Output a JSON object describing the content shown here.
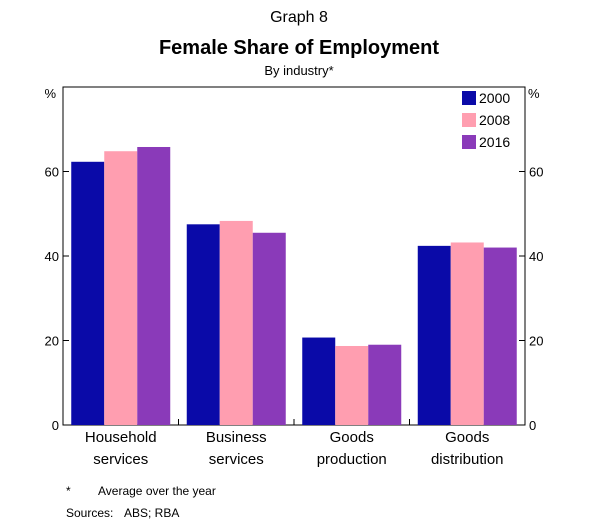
{
  "graph_label": "Graph 8",
  "chart_data": {
    "type": "bar",
    "title": "Female Share of Employment",
    "subtitle": "By industry*",
    "ylabel_left": "%",
    "ylabel_right": "%",
    "ylim": [
      0,
      80
    ],
    "yticks": [
      0,
      20,
      40,
      60
    ],
    "categories": [
      [
        "Household",
        "services"
      ],
      [
        "Business",
        "services"
      ],
      [
        "Goods",
        "production"
      ],
      [
        "Goods",
        "distribution"
      ]
    ],
    "series": [
      {
        "name": "2000",
        "color": "#0a0aa8",
        "values": [
          62.3,
          47.5,
          20.7,
          42.4
        ]
      },
      {
        "name": "2008",
        "color": "#ff9eb0",
        "values": [
          64.8,
          48.3,
          18.7,
          43.2
        ]
      },
      {
        "name": "2016",
        "color": "#8a3ab9",
        "values": [
          65.8,
          45.5,
          19.0,
          42.0
        ]
      }
    ],
    "legend_position": "top-right",
    "grid": false
  },
  "footnote": {
    "marker": "*",
    "text": "Average over the year"
  },
  "sources": {
    "label": "Sources:",
    "text": "ABS; RBA"
  }
}
